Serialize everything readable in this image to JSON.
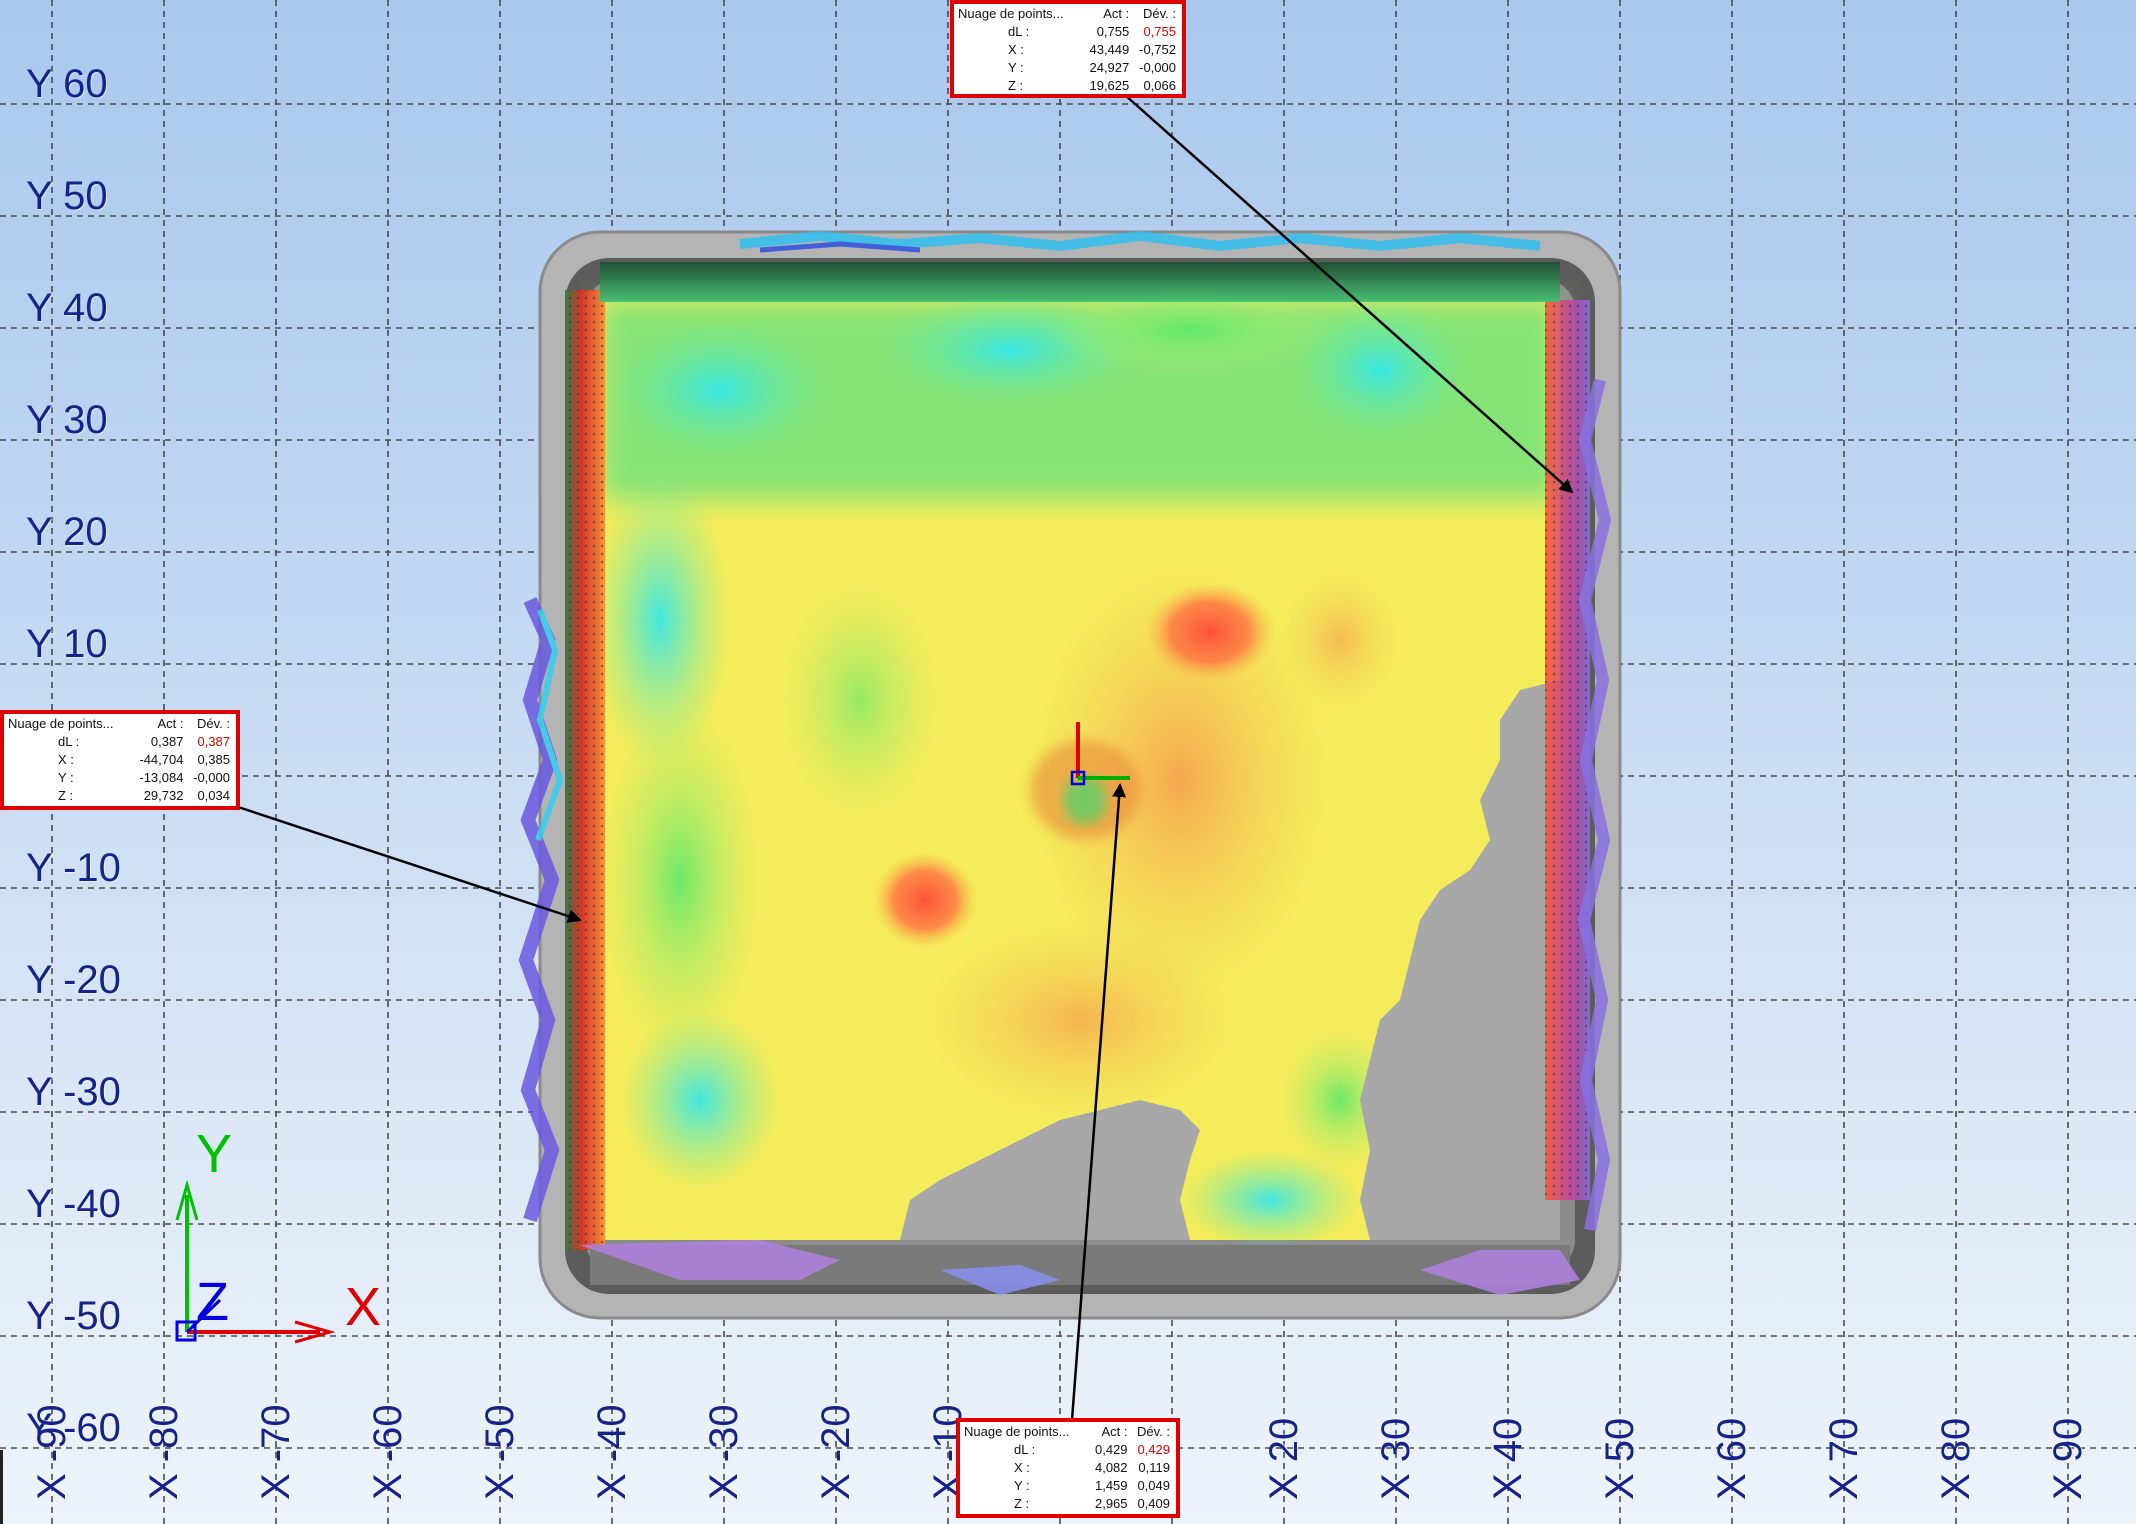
{
  "y_labels": [
    "Y 60",
    "Y 50",
    "Y 40",
    "Y 30",
    "Y 20",
    "Y 10",
    "Y -10",
    "Y -20",
    "Y -30",
    "Y -40",
    "Y -50",
    "Y -60"
  ],
  "x_labels": [
    "X -90",
    "X -80",
    "X -70",
    "X -60",
    "X -50",
    "X -40",
    "X -30",
    "X -20",
    "X -10",
    "X 20",
    "X 30",
    "X 40",
    "X 50",
    "X 60",
    "X 70",
    "X 80",
    "X 90"
  ],
  "callouts": {
    "top": {
      "header": [
        "Nuage de points...",
        "Act :",
        "Dév. :"
      ],
      "rows": [
        {
          "label": "dL :",
          "act": "0,755",
          "dev": "0,755",
          "dev_red": true
        },
        {
          "label": "X :",
          "act": "43,449",
          "dev": "-0,752",
          "dev_red": false
        },
        {
          "label": "Y :",
          "act": "24,927",
          "dev": "-0,000",
          "dev_red": false
        },
        {
          "label": "Z :",
          "act": "19,625",
          "dev": "0,066",
          "dev_red": false
        }
      ]
    },
    "left": {
      "header": [
        "Nuage de points...",
        "Act :",
        "Dév. :"
      ],
      "rows": [
        {
          "label": "dL :",
          "act": "0,387",
          "dev": "0,387",
          "dev_red": true
        },
        {
          "label": "X :",
          "act": "-44,704",
          "dev": "0,385",
          "dev_red": false
        },
        {
          "label": "Y :",
          "act": "-13,084",
          "dev": "-0,000",
          "dev_red": false
        },
        {
          "label": "Z :",
          "act": "29,732",
          "dev": "0,034",
          "dev_red": false
        }
      ]
    },
    "bottom": {
      "header": [
        "Nuage de points...",
        "Act :",
        "Dév. :"
      ],
      "rows": [
        {
          "label": "dL :",
          "act": "0,429",
          "dev": "0,429",
          "dev_red": true
        },
        {
          "label": "X :",
          "act": "4,082",
          "dev": "0,119",
          "dev_red": false
        },
        {
          "label": "Y :",
          "act": "1,459",
          "dev": "0,049",
          "dev_red": false
        },
        {
          "label": "Z :",
          "act": "2,965",
          "dev": "0,409",
          "dev_red": false
        }
      ]
    }
  },
  "triad": {
    "x": "X",
    "y": "Y",
    "z": "Z"
  },
  "colors": {
    "grid": "#4a4a4a",
    "label": "#14248c",
    "callout_border": "#e00000",
    "axis_x": "#e00000",
    "axis_y": "#00c000",
    "axis_z": "#0000e0",
    "part_gray": "#a8a8a8"
  }
}
